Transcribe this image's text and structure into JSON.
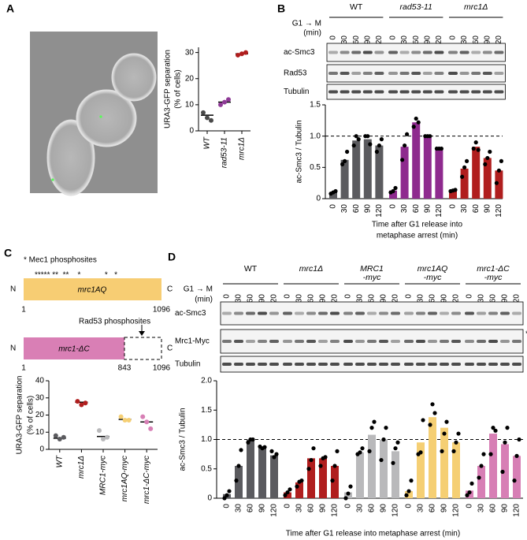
{
  "panel_labels": [
    "A",
    "B",
    "C",
    "D"
  ],
  "chart_data": [
    {
      "type": "dot",
      "ylabel": [
        "URA3-GFP separation",
        "(% of cells)"
      ],
      "categories": [
        "WT",
        "rad53-11",
        "mrc1Δ"
      ],
      "values": [
        [
          7,
          5,
          4
        ],
        [
          10,
          11,
          12
        ],
        [
          29,
          29.5,
          30
        ]
      ],
      "means": [
        6,
        11,
        29.5
      ],
      "colors": [
        "#4a4a4a",
        "#8e3a96",
        "#b01e1e"
      ],
      "ylim": [
        0,
        32
      ],
      "yticks": [
        0,
        10,
        20,
        30
      ]
    },
    {
      "type": "bar",
      "ylabel": "ac-Smc3 / Tubulin",
      "xlabel": [
        "Time after G1 release into",
        "metaphase arrest (min)"
      ],
      "categories": [
        "0",
        "30",
        "60",
        "90",
        "120"
      ],
      "series": [
        {
          "name": "WT",
          "color": "#5b5b5f",
          "values": [
            0.1,
            0.62,
            0.93,
            0.95,
            0.85
          ],
          "points": [
            [
              0.08,
              0.1,
              0.12
            ],
            [
              0.55,
              0.6,
              0.75
            ],
            [
              0.85,
              1.0,
              0.95
            ],
            [
              1.0,
              1.0,
              0.87
            ],
            [
              0.75,
              0.85,
              0.95
            ]
          ]
        },
        {
          "name": "rad53-11",
          "color": "#8e2a8e",
          "values": [
            0.13,
            0.83,
            1.22,
            1.0,
            0.8
          ],
          "points": [
            [
              0.1,
              0.12,
              0.17
            ],
            [
              0.62,
              0.85,
              1.03
            ],
            [
              1.15,
              1.28,
              1.22
            ],
            [
              1.0,
              1.0,
              1.0
            ],
            [
              0.8,
              0.8,
              0.8
            ]
          ]
        },
        {
          "name": "mrc1Δ",
          "color": "#b01e1e",
          "values": [
            0.13,
            0.48,
            0.83,
            0.65,
            0.45
          ],
          "points": [
            [
              0.12,
              0.13,
              0.14
            ],
            [
              0.35,
              0.5,
              0.6
            ],
            [
              0.8,
              0.9,
              0.78
            ],
            [
              0.55,
              0.65,
              0.75
            ],
            [
              0.25,
              0.45,
              0.6
            ]
          ]
        }
      ],
      "reference_line": {
        "value": 1,
        "label": "1.0"
      },
      "ylim": [
        0,
        1.5
      ],
      "yticks": [
        0,
        0.5,
        {
          "value": 1,
          "label": "1.0"
        },
        1.5
      ]
    },
    {
      "type": "dot",
      "ylabel": [
        "URA3-GFP separation",
        "(% of cells)"
      ],
      "categories": [
        "WT",
        "mrc1Δ",
        "MRC1-myc",
        "mrc1AQ-myc",
        "mrc1-ΔC-myc"
      ],
      "values": [
        [
          8,
          6,
          7
        ],
        [
          28,
          26,
          27
        ],
        [
          11,
          6,
          7
        ],
        [
          19,
          17,
          17
        ],
        [
          19,
          16,
          12
        ]
      ],
      "means": [
        6.5,
        27.5,
        7.5,
        17.5,
        16
      ],
      "colors": [
        "#5b5b5f",
        "#b01e1e",
        "#b9b9bb",
        "#f5cf74",
        "#d77fb5"
      ],
      "ylim": [
        0,
        40
      ],
      "yticks": [
        0,
        10,
        20,
        30,
        40
      ]
    },
    {
      "type": "bar",
      "ylabel": "ac-Smc3 / Tubulin",
      "xlabel": [
        "Time after G1 release into metaphase arrest (min)"
      ],
      "categories": [
        "0",
        "30",
        "60",
        "90",
        "120"
      ],
      "series": [
        {
          "name": "WT",
          "color": "#5b5b5f",
          "values": [
            0.07,
            0.55,
            1.0,
            0.87,
            0.73
          ],
          "points": [
            [
              0,
              0.05,
              0.12
            ],
            [
              0.3,
              0.55,
              0.82
            ],
            [
              0.95,
              1.0,
              1.0
            ],
            [
              0.88,
              0.85,
              0.87
            ],
            [
              0.8,
              0.7,
              0.75
            ]
          ]
        },
        {
          "name": "mrc1Δ",
          "color": "#b01e1e",
          "values": [
            0.1,
            0.27,
            0.68,
            0.68,
            0.55
          ],
          "points": [
            [
              0.05,
              0.1,
              0.15
            ],
            [
              0.2,
              0.28,
              0.3
            ],
            [
              0.5,
              0.65,
              0.85
            ],
            [
              0.55,
              0.68,
              0.7
            ],
            [
              0.3,
              0.55,
              0.8
            ]
          ]
        },
        {
          "name": "MRC1\n-myc",
          "color": "#b9b9bb",
          "values": [
            0.1,
            0.78,
            1.08,
            1.0,
            0.8
          ],
          "points": [
            [
              0,
              0.08,
              0.2
            ],
            [
              0.75,
              0.78,
              0.85
            ],
            [
              0.8,
              1.2,
              1.3
            ],
            [
              0.65,
              1.0,
              1.2
            ],
            [
              0.6,
              0.85,
              0.95
            ]
          ]
        },
        {
          "name": "mrc1AQ\n-myc",
          "color": "#f5cf74",
          "values": [
            0.12,
            0.95,
            1.38,
            1.2,
            0.95
          ],
          "points": [
            [
              0.05,
              0.12,
              0.3
            ],
            [
              0.75,
              0.78,
              1.33
            ],
            [
              1.25,
              1.6,
              1.45
            ],
            [
              0.8,
              1.1,
              1.3
            ],
            [
              0.8,
              0.95,
              1.1
            ]
          ]
        },
        {
          "name": "mrc1-ΔC\n-myc",
          "color": "#d77fb5",
          "values": [
            0.13,
            0.55,
            1.1,
            0.92,
            0.72
          ],
          "points": [
            [
              0.05,
              0.1,
              0.25
            ],
            [
              0.35,
              0.55,
              0.75
            ],
            [
              0.75,
              1.2,
              1.15
            ],
            [
              0.45,
              0.95,
              1.2
            ],
            [
              0.3,
              0.72,
              1.0
            ]
          ]
        }
      ],
      "reference_line": {
        "value": 1,
        "label": "1.0"
      },
      "ylim": [
        0,
        2
      ],
      "yticks": [
        0,
        0.5,
        {
          "value": 1,
          "label": "1.0"
        },
        1.5,
        {
          "value": 2,
          "label": "2.0"
        }
      ]
    }
  ],
  "blots": [
    {
      "timeline_label": "G1 → M",
      "unit_label": "(min)",
      "rows": [
        "ac-Smc3",
        "Rad53",
        "Tubulin"
      ]
    },
    {
      "timeline_label": "G1 → M",
      "unit_label": "(min)",
      "rows": [
        "ac-Smc3",
        "Mrc1-Myc",
        "Tubulin"
      ],
      "marker": "*"
    }
  ],
  "domains": {
    "title": "* Mec1 phosphosites",
    "sites": "***** **  **    *           *   *",
    "full": {
      "n": "N",
      "c": "C",
      "name": "mrc1AQ",
      "start": 1,
      "end": 1096
    },
    "rad53_label": "Rad53 phosphosites",
    "truncated": {
      "n": "N",
      "c": "C",
      "name": "mrc1-ΔC",
      "start": 1,
      "cut": 843,
      "end": 1096
    }
  }
}
